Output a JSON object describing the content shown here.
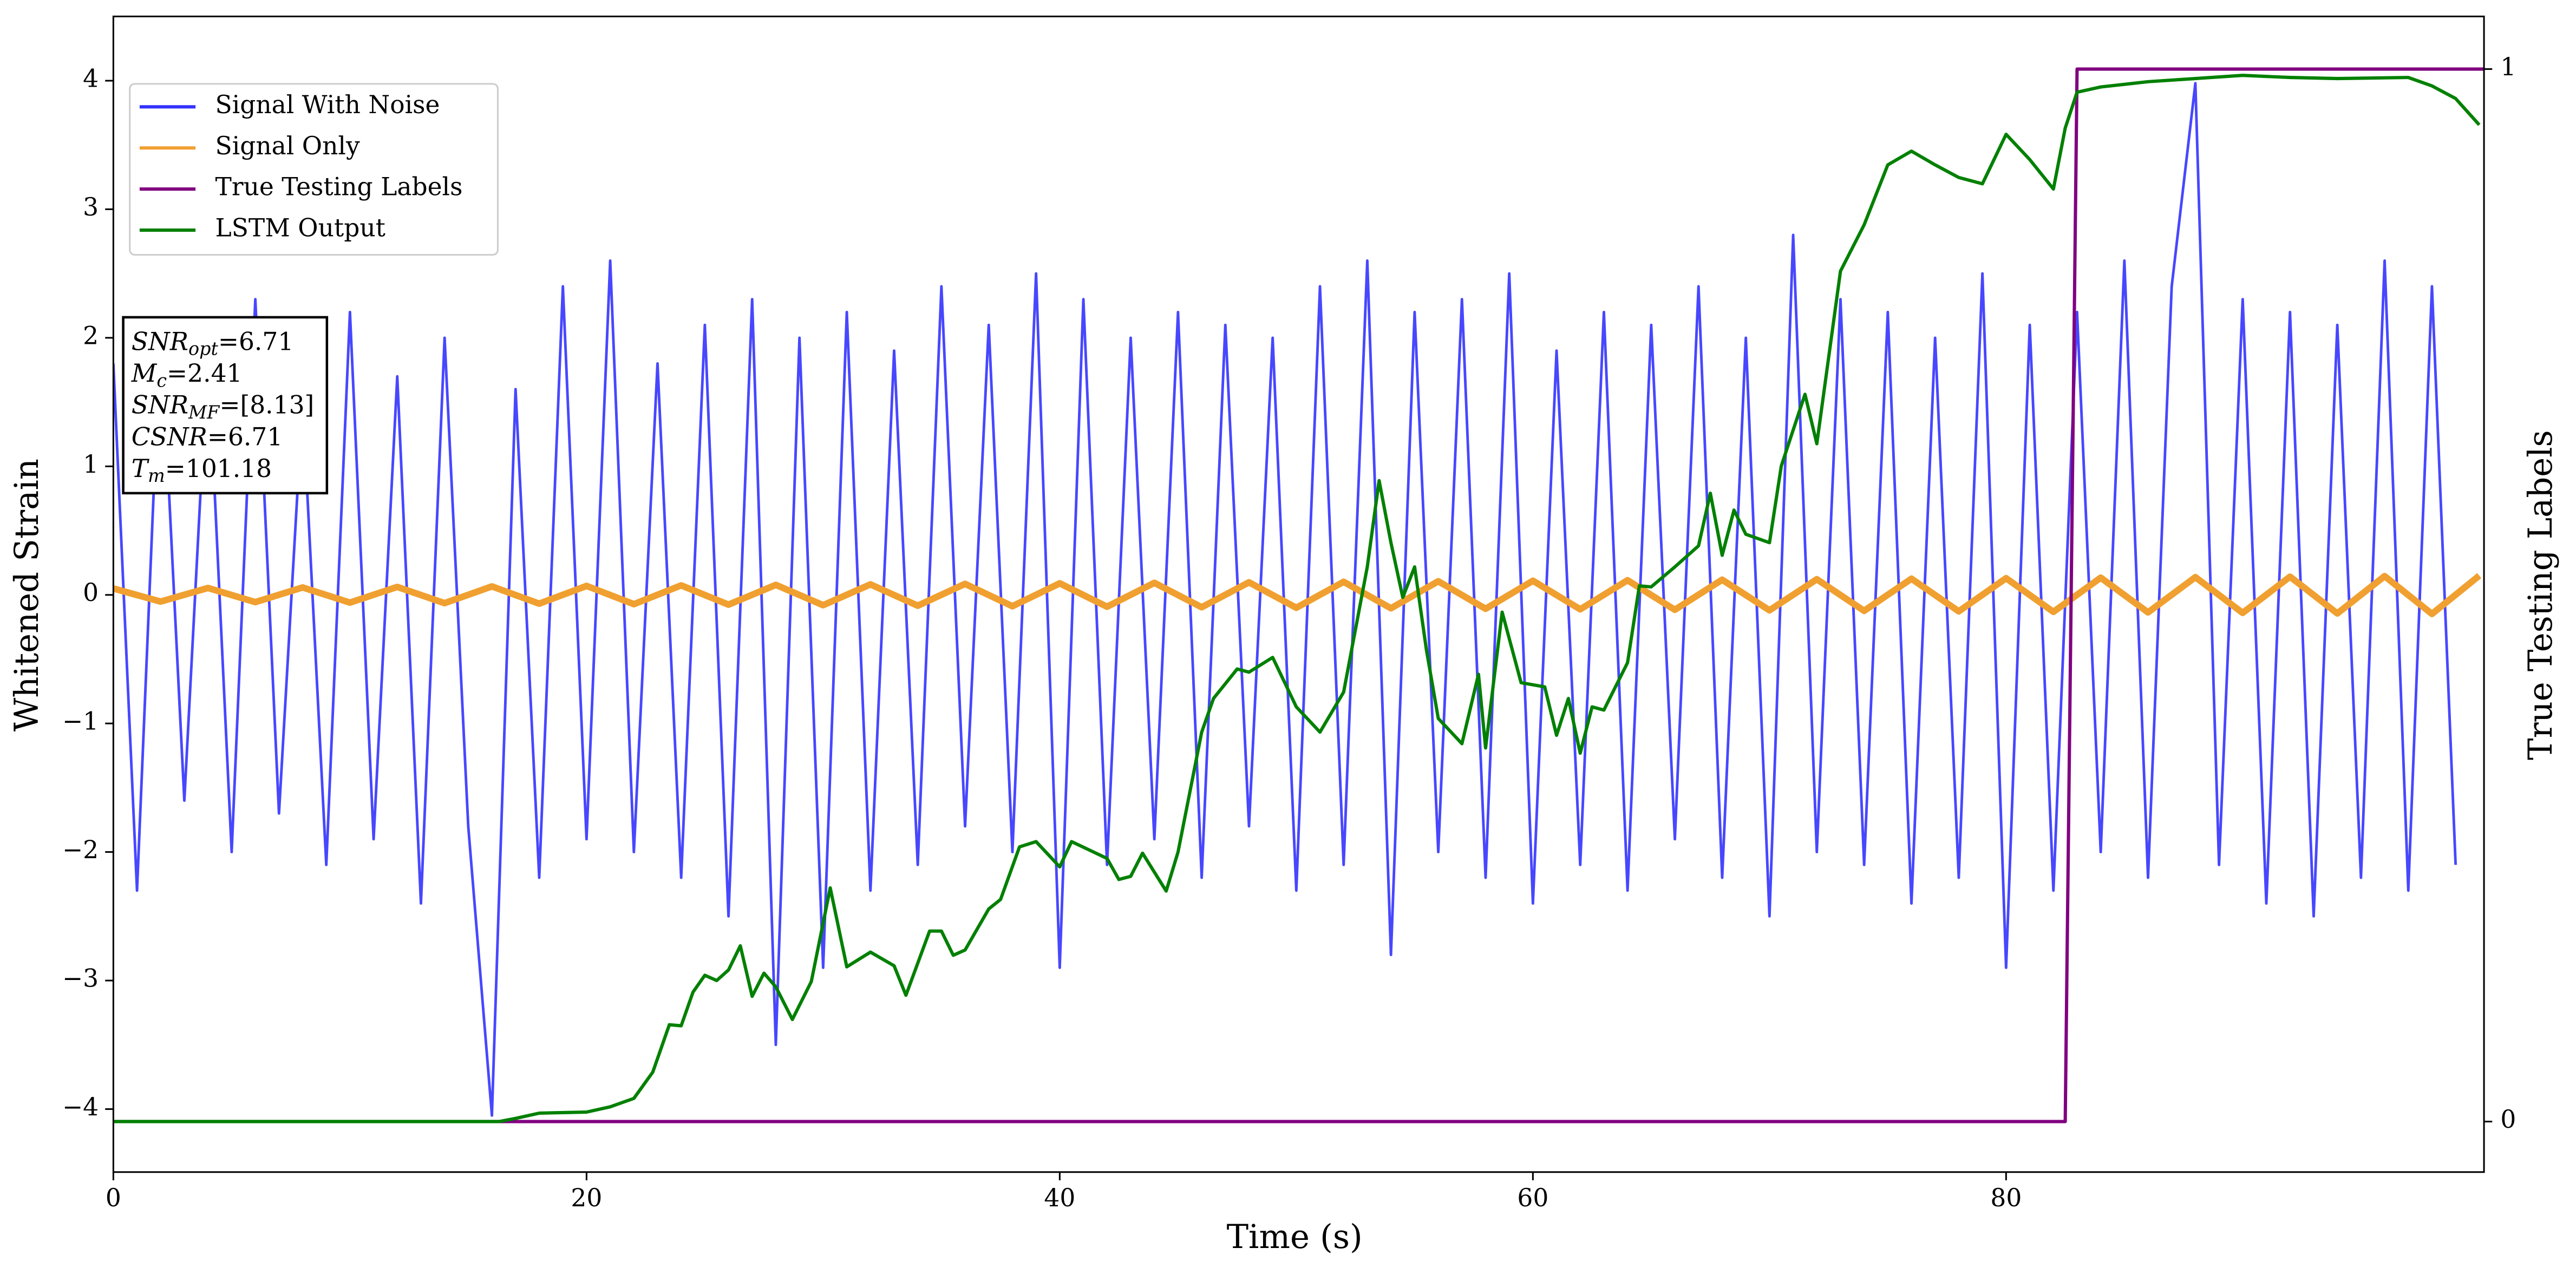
{
  "chart_data": {
    "type": "line",
    "xlabel": "Time (s)",
    "ylabel": "Whitened Strain",
    "y2label": "True Testing Labels",
    "xlim": [
      0,
      100.2
    ],
    "xticks": [
      0,
      20,
      40,
      60,
      80
    ],
    "ylim": [
      -4.49,
      4.5
    ],
    "yticks": [
      -4,
      -3,
      -2,
      -1,
      0,
      1,
      2,
      3,
      4
    ],
    "y2lim": [
      -0.048,
      1.05
    ],
    "y2ticks": [
      0,
      1
    ],
    "legend": "upper left",
    "series": [
      {
        "name": "Signal With Noise",
        "color": "#3333ff",
        "axis": "y",
        "x": [
          0,
          1,
          2,
          3,
          4,
          5,
          6,
          7,
          8,
          9,
          10,
          11,
          12,
          13,
          14,
          15,
          16,
          17,
          18,
          19,
          20,
          21,
          22,
          23,
          24,
          25,
          26,
          27,
          28,
          29,
          30,
          31,
          32,
          33,
          34,
          35,
          36,
          37,
          38,
          39,
          40,
          41,
          42,
          43,
          44,
          45,
          46,
          47,
          48,
          49,
          50,
          51,
          52,
          53,
          54,
          55,
          56,
          57,
          58,
          59,
          60,
          61,
          62,
          63,
          64,
          65,
          66,
          67,
          68,
          69,
          70,
          71,
          72,
          73,
          74,
          75,
          76,
          77,
          78,
          79,
          80,
          81,
          82,
          83,
          84,
          85,
          86,
          87,
          88,
          89,
          90,
          91,
          92,
          93,
          94,
          95,
          96,
          97,
          98,
          99
        ],
        "values": [
          1.8,
          -2.3,
          2.1,
          -1.6,
          1.9,
          -2.0,
          2.3,
          -1.7,
          1.5,
          -2.1,
          2.2,
          -1.9,
          1.7,
          -2.4,
          2.0,
          -1.8,
          -4.05,
          1.6,
          -2.2,
          2.4,
          -1.9,
          2.6,
          -2.0,
          1.8,
          -2.2,
          2.1,
          -2.5,
          2.3,
          -3.5,
          2.0,
          -2.9,
          2.2,
          -2.3,
          1.9,
          -2.1,
          2.4,
          -1.8,
          2.1,
          -2.0,
          2.5,
          -2.9,
          2.3,
          -2.1,
          2.0,
          -1.9,
          2.2,
          -2.2,
          2.1,
          -1.8,
          2.0,
          -2.3,
          2.4,
          -2.1,
          2.6,
          -2.8,
          2.2,
          -2.0,
          2.3,
          -2.2,
          2.5,
          -2.4,
          1.9,
          -2.1,
          2.2,
          -2.3,
          2.1,
          -1.9,
          2.4,
          -2.2,
          2.0,
          -2.5,
          2.8,
          -2.0,
          2.3,
          -2.1,
          2.2,
          -2.4,
          2.0,
          -2.2,
          2.5,
          -2.9,
          2.1,
          -2.3,
          2.2,
          -2.0,
          2.6,
          -2.2,
          2.4,
          3.98,
          -2.1,
          2.3,
          -2.4,
          2.2,
          -2.5,
          2.1,
          -2.2,
          2.6,
          -2.3,
          2.4,
          -2.1
        ]
      },
      {
        "name": "Signal Only",
        "color": "#f0a030",
        "axis": "y",
        "x": [
          0,
          2,
          4,
          6,
          8,
          10,
          12,
          14,
          16,
          18,
          20,
          22,
          24,
          26,
          28,
          30,
          32,
          34,
          36,
          38,
          40,
          42,
          44,
          46,
          48,
          50,
          52,
          54,
          56,
          58,
          60,
          62,
          64,
          66,
          68,
          70,
          72,
          74,
          76,
          78,
          80,
          82,
          84,
          86,
          88,
          90,
          92,
          94,
          96,
          98,
          100
        ],
        "values": [
          0.05,
          -0.052,
          0.054,
          -0.056,
          0.058,
          -0.06,
          0.062,
          -0.064,
          0.066,
          -0.068,
          0.07,
          -0.072,
          0.074,
          -0.076,
          0.078,
          -0.08,
          0.082,
          -0.084,
          0.086,
          -0.088,
          0.09,
          -0.092,
          0.094,
          -0.096,
          0.098,
          -0.1,
          0.102,
          -0.104,
          0.106,
          -0.108,
          0.11,
          -0.112,
          0.114,
          -0.116,
          0.118,
          -0.12,
          0.122,
          -0.124,
          0.126,
          -0.128,
          0.13,
          -0.132,
          0.134,
          -0.136,
          0.138,
          -0.14,
          0.142,
          -0.144,
          0.146,
          -0.148,
          0.15
        ]
      },
      {
        "name": "True Testing Labels",
        "color": "#800080",
        "axis": "y2",
        "x": [
          0,
          82.5,
          83,
          100.2
        ],
        "values": [
          0,
          0,
          1,
          1
        ]
      },
      {
        "name": "LSTM Output",
        "color": "#008000",
        "axis": "y2",
        "x": [
          0,
          16.3,
          17,
          18,
          20,
          21,
          22,
          22.8,
          23.5,
          24,
          24.5,
          25,
          25.5,
          26,
          26.5,
          27,
          27.5,
          28,
          28.7,
          29.5,
          30.3,
          31,
          32,
          33,
          33.5,
          34.5,
          35,
          35.5,
          36,
          37,
          37.5,
          38.3,
          39,
          40,
          40.5,
          42,
          42.5,
          43,
          43.5,
          44.5,
          45,
          46,
          46.5,
          47.5,
          48,
          49,
          50,
          51,
          52,
          53,
          53.5,
          54,
          54.5,
          55,
          55.5,
          56,
          57,
          57.7,
          58,
          58.7,
          59.5,
          60.5,
          61,
          61.5,
          62,
          62.5,
          63,
          64,
          64.5,
          65,
          66,
          67,
          67.5,
          68,
          68.5,
          69,
          70,
          70.5,
          71.5,
          72,
          73,
          74,
          75,
          76,
          77,
          78,
          79,
          80,
          81,
          82,
          82.5,
          83,
          84,
          86,
          88,
          90,
          92,
          94,
          97,
          98,
          99,
          100
        ],
        "values": [
          0,
          0,
          0.003,
          0.008,
          0.009,
          0.014,
          0.022,
          0.047,
          0.092,
          0.091,
          0.123,
          0.139,
          0.134,
          0.144,
          0.167,
          0.119,
          0.141,
          0.128,
          0.097,
          0.133,
          0.222,
          0.147,
          0.161,
          0.148,
          0.12,
          0.181,
          0.181,
          0.158,
          0.163,
          0.202,
          0.211,
          0.261,
          0.266,
          0.242,
          0.266,
          0.25,
          0.23,
          0.233,
          0.255,
          0.219,
          0.256,
          0.37,
          0.402,
          0.43,
          0.427,
          0.441,
          0.394,
          0.37,
          0.408,
          0.527,
          0.609,
          0.55,
          0.498,
          0.527,
          0.448,
          0.383,
          0.359,
          0.425,
          0.355,
          0.484,
          0.417,
          0.413,
          0.367,
          0.402,
          0.35,
          0.394,
          0.391,
          0.436,
          0.509,
          0.508,
          0.527,
          0.547,
          0.597,
          0.538,
          0.581,
          0.558,
          0.55,
          0.623,
          0.691,
          0.644,
          0.808,
          0.852,
          0.909,
          0.922,
          0.909,
          0.897,
          0.891,
          0.938,
          0.914,
          0.886,
          0.944,
          0.978,
          0.983,
          0.988,
          0.991,
          0.994,
          0.992,
          0.991,
          0.992,
          0.984,
          0.972,
          0.947
        ]
      }
    ],
    "annotation": [
      {
        "symbol": "SNR",
        "sub": "opt",
        "value": "=6.71"
      },
      {
        "symbol": "M",
        "sub": "c",
        "value": "=2.41"
      },
      {
        "symbol": "SNR",
        "sub": "MF",
        "value": "=[8.13]"
      },
      {
        "symbol": "CSNR",
        "value": "=6.71"
      },
      {
        "symbol": "T",
        "sub": "m",
        "value": "=101.18"
      }
    ]
  }
}
